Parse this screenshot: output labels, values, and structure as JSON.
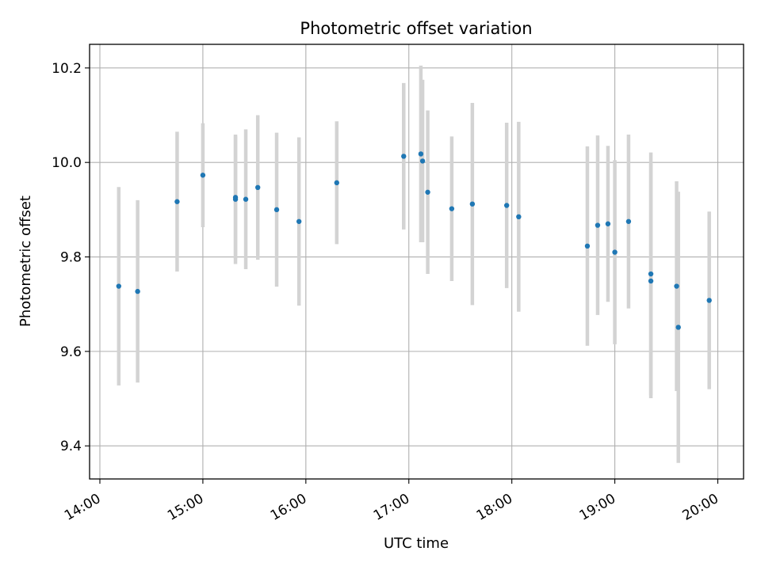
{
  "chart_data": {
    "type": "scatter",
    "title": "Photometric offset variation",
    "xlabel": "UTC time",
    "ylabel": "Photometric offset",
    "x_unit": "hours UTC",
    "xlim": [
      13.9,
      20.25
    ],
    "ylim": [
      9.33,
      10.25
    ],
    "x_ticks": [
      {
        "value": 14,
        "label": "14:00"
      },
      {
        "value": 15,
        "label": "15:00"
      },
      {
        "value": 16,
        "label": "16:00"
      },
      {
        "value": 17,
        "label": "17:00"
      },
      {
        "value": 18,
        "label": "18:00"
      },
      {
        "value": 19,
        "label": "19:00"
      },
      {
        "value": 20,
        "label": "20:00"
      }
    ],
    "y_ticks": [
      {
        "value": 9.4,
        "label": "9.4"
      },
      {
        "value": 9.6,
        "label": "9.6"
      },
      {
        "value": 9.8,
        "label": "9.8"
      },
      {
        "value": 10.0,
        "label": "10.0"
      },
      {
        "value": 10.2,
        "label": "10.2"
      }
    ],
    "grid": true,
    "colors": {
      "point": "#1f77b4",
      "errorbar": "#d3d3d3",
      "grid": "#b0b0b0",
      "axes": "#000000"
    },
    "points": [
      {
        "x": "14:11",
        "y": 9.738,
        "yerr": 0.21
      },
      {
        "x": "14:22",
        "y": 9.727,
        "yerr": 0.193
      },
      {
        "x": "14:45",
        "y": 9.917,
        "yerr": 0.148
      },
      {
        "x": "15:00",
        "y": 9.973,
        "yerr": 0.11
      },
      {
        "x": "15:19",
        "y": 9.922,
        "yerr": 0.137
      },
      {
        "x": "15:19",
        "y": 9.926,
        "yerr": 0.13
      },
      {
        "x": "15:25",
        "y": 9.922,
        "yerr": 0.148
      },
      {
        "x": "15:32",
        "y": 9.947,
        "yerr": 0.153
      },
      {
        "x": "15:43",
        "y": 9.9,
        "yerr": 0.163
      },
      {
        "x": "15:56",
        "y": 9.875,
        "yerr": 0.178
      },
      {
        "x": "16:18",
        "y": 9.957,
        "yerr": 0.13
      },
      {
        "x": "16:57",
        "y": 10.013,
        "yerr": 0.155
      },
      {
        "x": "17:07",
        "y": 10.018,
        "yerr": 0.187
      },
      {
        "x": "17:08",
        "y": 10.003,
        "yerr": 0.172
      },
      {
        "x": "17:11",
        "y": 9.937,
        "yerr": 0.173
      },
      {
        "x": "17:25",
        "y": 9.902,
        "yerr": 0.153
      },
      {
        "x": "17:37",
        "y": 9.912,
        "yerr": 0.214
      },
      {
        "x": "17:57",
        "y": 9.909,
        "yerr": 0.175
      },
      {
        "x": "18:04",
        "y": 9.885,
        "yerr": 0.201
      },
      {
        "x": "18:44",
        "y": 9.823,
        "yerr": 0.211
      },
      {
        "x": "18:50",
        "y": 9.867,
        "yerr": 0.19
      },
      {
        "x": "18:56",
        "y": 9.87,
        "yerr": 0.165
      },
      {
        "x": "19:00",
        "y": 9.81,
        "yerr": 0.195
      },
      {
        "x": "19:08",
        "y": 9.875,
        "yerr": 0.184
      },
      {
        "x": "19:21",
        "y": 9.764,
        "yerr": 0.257
      },
      {
        "x": "19:21",
        "y": 9.749,
        "yerr": 0.248
      },
      {
        "x": "19:36",
        "y": 9.738,
        "yerr": 0.222
      },
      {
        "x": "19:37",
        "y": 9.651,
        "yerr": 0.287
      },
      {
        "x": "19:55",
        "y": 9.708,
        "yerr": 0.188
      }
    ]
  }
}
